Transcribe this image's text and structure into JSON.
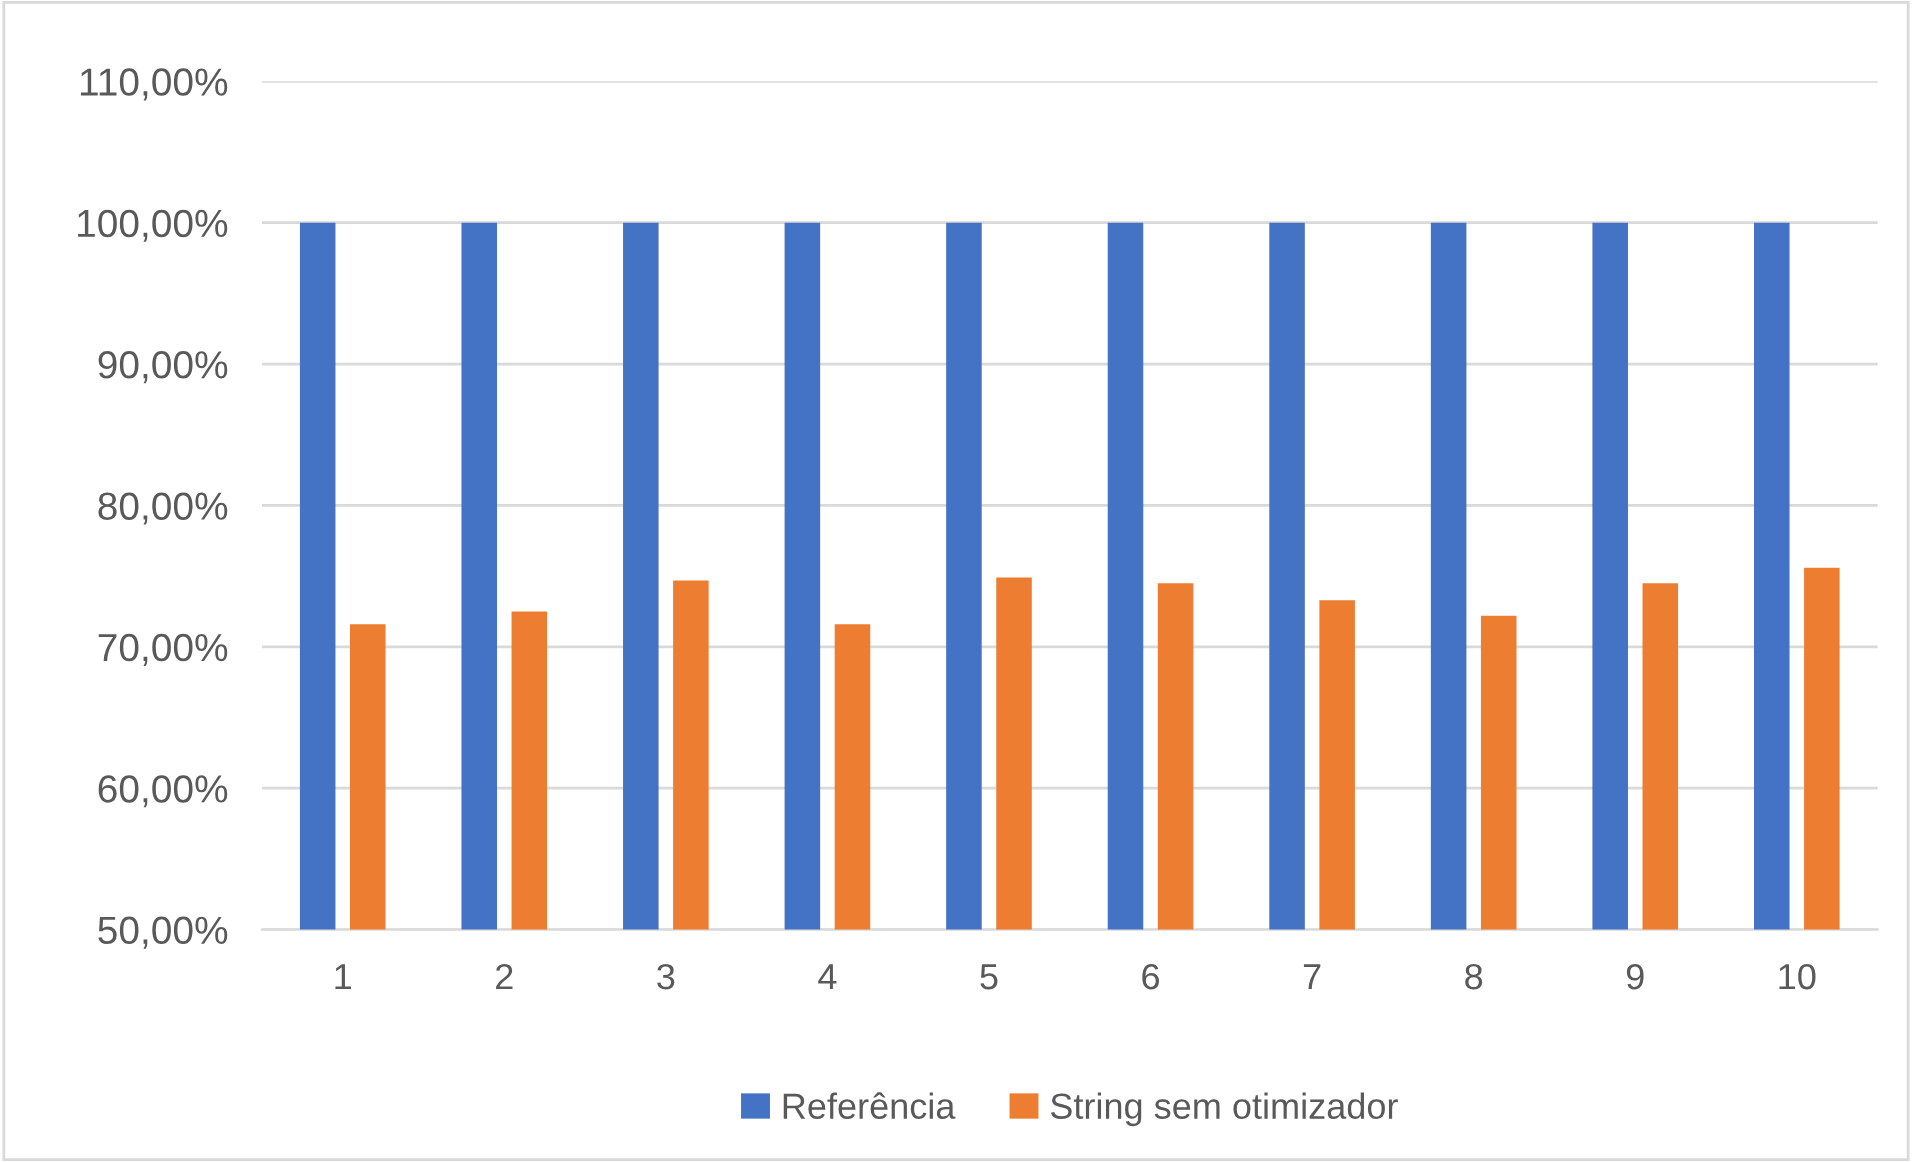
{
  "chart_data": {
    "type": "bar",
    "categories": [
      "1",
      "2",
      "3",
      "4",
      "5",
      "6",
      "7",
      "8",
      "9",
      "10"
    ],
    "series": [
      {
        "name": "Referência",
        "color": "#4472c4",
        "values": [
          100,
          100,
          100,
          100,
          100,
          100,
          100,
          100,
          100,
          100
        ]
      },
      {
        "name": "String sem otimizador",
        "color": "#ed7d31",
        "values": [
          71.6,
          72.5,
          74.7,
          71.6,
          74.9,
          74.5,
          73.3,
          72.2,
          74.5,
          75.6
        ]
      }
    ],
    "ylim": [
      50,
      110
    ],
    "yticks": [
      {
        "value": 50,
        "label": "50,00%"
      },
      {
        "value": 60,
        "label": "60,00%"
      },
      {
        "value": 70,
        "label": "70,00%"
      },
      {
        "value": 80,
        "label": "80,00%"
      },
      {
        "value": 90,
        "label": "90,00%"
      },
      {
        "value": 100,
        "label": "100,00%"
      },
      {
        "value": 110,
        "label": "110,00%"
      }
    ],
    "grid": "y",
    "legend": "bottom"
  }
}
